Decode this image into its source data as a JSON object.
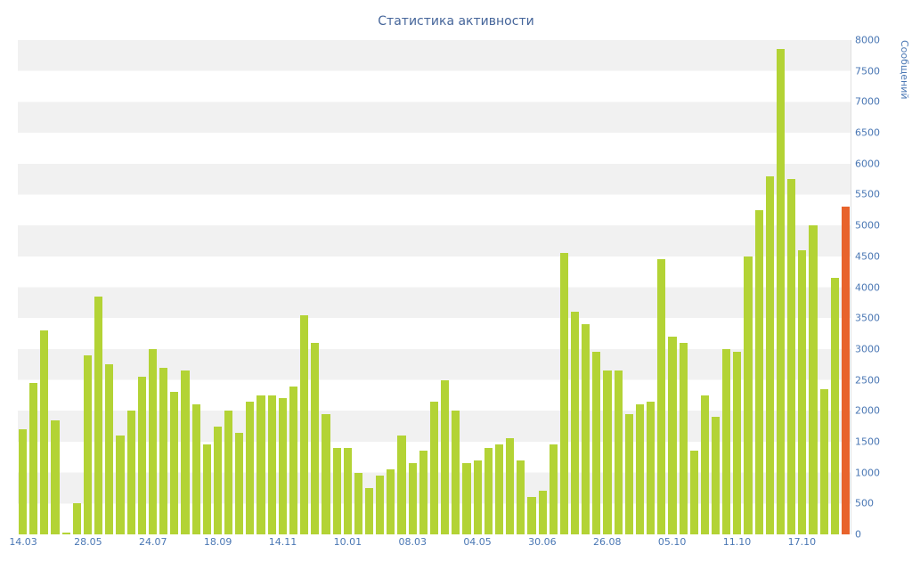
{
  "title": "Статистика активности",
  "y_axis": {
    "title": "Сообщений",
    "min": 0,
    "max": 8000,
    "step": 500,
    "tick_labels": [
      "0",
      "500",
      "1000",
      "1500",
      "2000",
      "2500",
      "3000",
      "3500",
      "4000",
      "4500",
      "5000",
      "5500",
      "6000",
      "6500",
      "7000",
      "7500",
      "8000"
    ]
  },
  "x_axis": {
    "labels": [
      "14.03",
      "28.05",
      "24.07",
      "18.09",
      "14.11",
      "10.01",
      "08.03",
      "04.05",
      "30.06",
      "26.08",
      "05.10",
      "11.10",
      "17.10"
    ],
    "bars_per_label": 6
  },
  "colors": {
    "bar": "#b3d335",
    "highlight_bar": "#e8632c",
    "band": "#f1f1f1",
    "axis_text": "#4a77b4",
    "title_text": "#45659a"
  },
  "chart_data": {
    "type": "bar",
    "title": "Статистика активности",
    "xlabel": "",
    "ylabel": "Сообщений",
    "ylim": [
      0,
      8000
    ],
    "y_step": 500,
    "grid": "striped-bands",
    "legend": "none",
    "x_tick_labels": [
      "14.03",
      "28.05",
      "24.07",
      "18.09",
      "14.11",
      "10.01",
      "08.03",
      "04.05",
      "30.06",
      "26.08",
      "05.10",
      "11.10",
      "17.10"
    ],
    "values": [
      1700,
      2450,
      3300,
      1850,
      30,
      500,
      2900,
      3850,
      2750,
      1600,
      2000,
      2550,
      3000,
      2700,
      2300,
      2650,
      2100,
      1450,
      1750,
      2000,
      1650,
      2150,
      2250,
      2250,
      2200,
      2400,
      3550,
      3100,
      1950,
      1400,
      1400,
      1000,
      750,
      950,
      1050,
      1600,
      1150,
      1350,
      2150,
      2500,
      2000,
      1150,
      1200,
      1400,
      1450,
      1550,
      1200,
      600,
      700,
      1450,
      4550,
      3600,
      3400,
      2950,
      2650,
      2650,
      1950,
      2100,
      2150,
      4450,
      3200,
      3100,
      1350,
      2250,
      1900,
      3000,
      2950,
      4500,
      5250,
      5800,
      7850,
      5750,
      4600,
      5000,
      2350,
      4150,
      5300
    ],
    "highlight_index": 76
  }
}
